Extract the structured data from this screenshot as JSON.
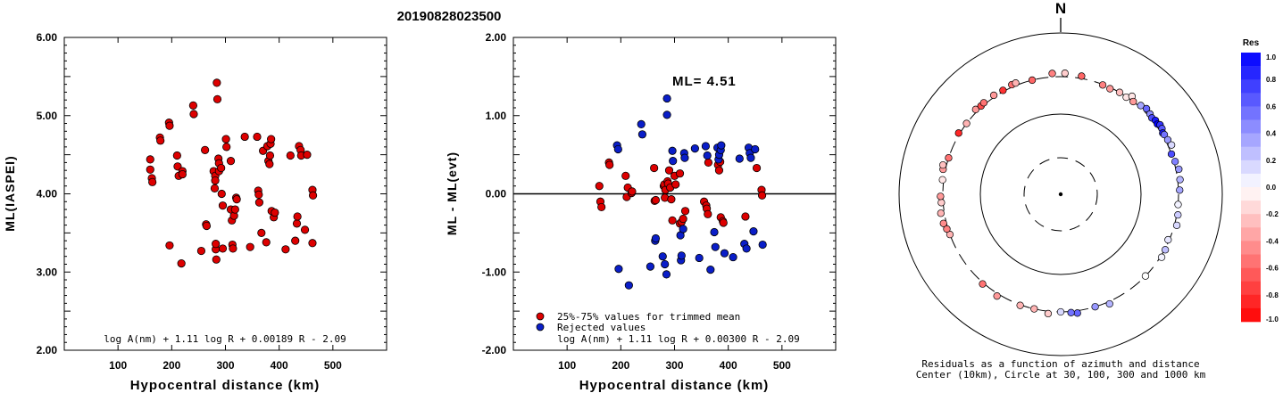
{
  "title": "20190828023500",
  "colors": {
    "pass": "#dd0000",
    "reject": "#0a1ec8",
    "edge": "#000000"
  },
  "chart_data": [
    {
      "type": "scatter",
      "xlabel": "Hypocentral distance (km)",
      "ylabel": "ML(IASPEI)",
      "xlim": [
        0,
        600
      ],
      "ylim": [
        2.0,
        6.0
      ],
      "xticks": [
        "100",
        "200",
        "300",
        "400",
        "500"
      ],
      "yticks": [
        "2.00",
        "3.00",
        "4.00",
        "5.00",
        "6.00"
      ],
      "formula": "log A(nm) + 1.11 log R + 0.00189 R - 2.09",
      "points": [
        [
          160,
          4.44
        ],
        [
          160,
          4.31
        ],
        [
          163,
          4.2
        ],
        [
          164,
          4.15
        ],
        [
          178,
          4.72
        ],
        [
          179,
          4.68
        ],
        [
          195,
          4.91
        ],
        [
          196,
          4.87
        ],
        [
          196,
          3.34
        ],
        [
          210,
          4.49
        ],
        [
          211,
          4.35
        ],
        [
          213,
          4.23
        ],
        [
          218,
          3.11
        ],
        [
          220,
          4.29
        ],
        [
          220,
          4.25
        ],
        [
          240,
          5.13
        ],
        [
          241,
          5.02
        ],
        [
          255,
          3.27
        ],
        [
          262,
          4.56
        ],
        [
          264,
          3.61
        ],
        [
          265,
          3.59
        ],
        [
          278,
          4.29
        ],
        [
          280,
          4.07
        ],
        [
          281,
          4.23
        ],
        [
          281,
          4.17
        ],
        [
          282,
          3.29
        ],
        [
          282,
          3.36
        ],
        [
          283,
          3.16
        ],
        [
          284,
          5.42
        ],
        [
          285,
          5.21
        ],
        [
          287,
          4.45
        ],
        [
          288,
          4.39
        ],
        [
          288,
          4.29
        ],
        [
          292,
          4.33
        ],
        [
          293,
          4.0
        ],
        [
          295,
          3.85
        ],
        [
          295,
          3.3
        ],
        [
          301,
          4.7
        ],
        [
          302,
          4.6
        ],
        [
          310,
          4.42
        ],
        [
          310,
          3.8
        ],
        [
          312,
          3.66
        ],
        [
          313,
          3.35
        ],
        [
          314,
          3.3
        ],
        [
          316,
          3.72
        ],
        [
          318,
          3.8
        ],
        [
          320,
          3.95
        ],
        [
          321,
          3.93
        ],
        [
          336,
          4.73
        ],
        [
          346,
          3.32
        ],
        [
          359,
          4.73
        ],
        [
          361,
          4.04
        ],
        [
          362,
          3.99
        ],
        [
          363,
          3.89
        ],
        [
          367,
          3.5
        ],
        [
          370,
          4.55
        ],
        [
          376,
          3.38
        ],
        [
          378,
          4.61
        ],
        [
          380,
          4.42
        ],
        [
          382,
          4.38
        ],
        [
          383,
          4.49
        ],
        [
          384,
          4.64
        ],
        [
          385,
          4.7
        ],
        [
          386,
          3.78
        ],
        [
          390,
          3.7
        ],
        [
          392,
          3.76
        ],
        [
          412,
          3.29
        ],
        [
          421,
          4.49
        ],
        [
          430,
          3.4
        ],
        [
          433,
          3.62
        ],
        [
          434,
          3.71
        ],
        [
          437,
          4.61
        ],
        [
          440,
          4.56
        ],
        [
          441,
          4.49
        ],
        [
          448,
          3.54
        ],
        [
          452,
          4.5
        ],
        [
          462,
          3.37
        ],
        [
          462,
          4.05
        ],
        [
          463,
          3.98
        ]
      ]
    },
    {
      "type": "scatter",
      "xlabel": "Hypocentral distance (km)",
      "ylabel": "ML - ML(evt)",
      "xlim": [
        0,
        600
      ],
      "ylim": [
        -2.0,
        2.0
      ],
      "xticks": [
        "100",
        "200",
        "300",
        "400",
        "500"
      ],
      "yticks": [
        "-2.00",
        "-1.00",
        "0.00",
        "1.00",
        "2.00"
      ],
      "annotation": "ML= 4.51",
      "legend": {
        "placement": "bottom-left",
        "items": [
          {
            "label": "25%-75% values for trimmed mean",
            "color": "#dd0000"
          },
          {
            "label": "Rejected values",
            "color": "#0a1ec8"
          }
        ]
      },
      "formula": "log A(nm) + 1.11 log R + 0.00300 R - 2.09",
      "series": [
        {
          "name": "25%-75% values for trimmed mean",
          "points": [
            [
              160,
              0.1
            ],
            [
              162,
              -0.1
            ],
            [
              164,
              -0.17
            ],
            [
              178,
              0.4
            ],
            [
              179,
              0.37
            ],
            [
              209,
              0.23
            ],
            [
              211,
              -0.04
            ],
            [
              213,
              0.08
            ],
            [
              220,
              0.01
            ],
            [
              221,
              0.03
            ],
            [
              262,
              0.33
            ],
            [
              263,
              -0.09
            ],
            [
              265,
              -0.08
            ],
            [
              280,
              0.1
            ],
            [
              281,
              0.12
            ],
            [
              282,
              -0.05
            ],
            [
              283,
              0.05
            ],
            [
              287,
              0.16
            ],
            [
              288,
              0.13
            ],
            [
              290,
              0.3
            ],
            [
              292,
              0.08
            ],
            [
              294,
              -0.07
            ],
            [
              296,
              -0.34
            ],
            [
              300,
              0.23
            ],
            [
              302,
              0.12
            ],
            [
              310,
              0.26
            ],
            [
              310,
              -0.38
            ],
            [
              313,
              -0.36
            ],
            [
              316,
              -0.32
            ],
            [
              320,
              -0.22
            ],
            [
              355,
              -0.1
            ],
            [
              359,
              -0.15
            ],
            [
              360,
              -0.19
            ],
            [
              362,
              -0.26
            ],
            [
              363,
              0.4
            ],
            [
              381,
              0.37
            ],
            [
              383,
              0.3
            ],
            [
              385,
              0.41
            ],
            [
              386,
              -0.3
            ],
            [
              390,
              -0.35
            ],
            [
              391,
              -0.37
            ],
            [
              432,
              -0.29
            ],
            [
              453,
              0.33
            ],
            [
              462,
              0.05
            ],
            [
              463,
              -0.02
            ]
          ]
        },
        {
          "name": "Rejected values",
          "points": [
            [
              193,
              0.62
            ],
            [
              195,
              0.57
            ],
            [
              196,
              -0.96
            ],
            [
              215,
              -1.17
            ],
            [
              238,
              0.89
            ],
            [
              240,
              0.76
            ],
            [
              255,
              -0.93
            ],
            [
              264,
              -0.6
            ],
            [
              265,
              -0.57
            ],
            [
              278,
              -0.8
            ],
            [
              282,
              -0.9
            ],
            [
              285,
              -1.03
            ],
            [
              286,
              1.22
            ],
            [
              286,
              1.01
            ],
            [
              296,
              0.55
            ],
            [
              297,
              0.42
            ],
            [
              311,
              -0.53
            ],
            [
              312,
              -0.85
            ],
            [
              313,
              -0.79
            ],
            [
              316,
              -0.45
            ],
            [
              318,
              0.52
            ],
            [
              319,
              0.46
            ],
            [
              338,
              0.58
            ],
            [
              346,
              -0.82
            ],
            [
              358,
              0.61
            ],
            [
              361,
              0.49
            ],
            [
              367,
              -0.97
            ],
            [
              374,
              -0.49
            ],
            [
              376,
              -0.68
            ],
            [
              380,
              0.59
            ],
            [
              382,
              0.44
            ],
            [
              383,
              0.5
            ],
            [
              386,
              0.56
            ],
            [
              387,
              0.62
            ],
            [
              393,
              -0.76
            ],
            [
              409,
              -0.81
            ],
            [
              421,
              0.45
            ],
            [
              430,
              -0.64
            ],
            [
              434,
              -0.7
            ],
            [
              438,
              0.59
            ],
            [
              440,
              0.52
            ],
            [
              442,
              0.46
            ],
            [
              447,
              -0.48
            ],
            [
              450,
              0.57
            ],
            [
              464,
              -0.65
            ]
          ]
        }
      ]
    },
    {
      "type": "polar",
      "north_label": "N",
      "caption": [
        "Residuals as a function of azimuth and distance",
        "Center (10km), Circle at 30, 100, 300 and 1000 km"
      ],
      "colorbar": {
        "title": "Res",
        "range": [
          -1.0,
          1.0
        ],
        "ticks": [
          "1.0",
          "0.8",
          "0.6",
          "0.4",
          "0.2",
          "0.0",
          "-0.2",
          "-0.4",
          "-0.6",
          "-0.8",
          "-1.0"
        ]
      },
      "points": [
        [
          2,
          330,
          -0.2
        ],
        [
          10,
          320,
          -0.6
        ],
        [
          21,
          295,
          -0.5
        ],
        [
          25,
          290,
          -0.4
        ],
        [
          30,
          300,
          -0.25
        ],
        [
          34,
          295,
          -0.1
        ],
        [
          36,
          330,
          -0.1
        ],
        [
          38,
          300,
          -0.4
        ],
        [
          42,
          315,
          0.35
        ],
        [
          45,
          330,
          0.6
        ],
        [
          48,
          320,
          0.45
        ],
        [
          50,
          310,
          0.7
        ],
        [
          52,
          320,
          0.9
        ],
        [
          54,
          315,
          1.0
        ],
        [
          55,
          330,
          0.8
        ],
        [
          57,
          325,
          0.65
        ],
        [
          59,
          310,
          0.9
        ],
        [
          60,
          315,
          0.55
        ],
        [
          63,
          320,
          0.4
        ],
        [
          66,
          330,
          0.15
        ],
        [
          70,
          300,
          0.7
        ],
        [
          74,
          310,
          0.5
        ],
        [
          78,
          325,
          0.4
        ],
        [
          83,
          320,
          0.3
        ],
        [
          88,
          310,
          0.35
        ],
        [
          95,
          300,
          0.05
        ],
        [
          100,
          310,
          0.2
        ],
        [
          105,
          320,
          0.15
        ],
        [
          113,
          290,
          0.1
        ],
        [
          118,
          305,
          0.25
        ],
        [
          122,
          310,
          0.05
        ],
        [
          134,
          300,
          0.0
        ],
        [
          156,
          320,
          0.3
        ],
        [
          163,
          300,
          0.4
        ],
        [
          172,
          320,
          0.6
        ],
        [
          175,
          310,
          0.55
        ],
        [
          180,
          300,
          0.15
        ],
        [
          186,
          320,
          -0.2
        ],
        [
          193,
          300,
          -0.3
        ],
        [
          200,
          305,
          -0.3
        ],
        [
          212,
          320,
          -0.4
        ],
        [
          221,
          310,
          -0.55
        ],
        [
          250,
          300,
          -0.3
        ],
        [
          253,
          310,
          -0.5
        ],
        [
          256,
          325,
          -0.45
        ],
        [
          261,
          330,
          -0.3
        ],
        [
          266,
          315,
          -0.2
        ],
        [
          269,
          320,
          -0.4
        ],
        [
          277,
          310,
          -0.1
        ],
        [
          282,
          320,
          -0.4
        ],
        [
          284,
          330,
          -0.25
        ],
        [
          288,
          300,
          -0.55
        ],
        [
          301,
          310,
          -0.85
        ],
        [
          307,
          300,
          -0.3
        ],
        [
          315,
          320,
          -0.4
        ],
        [
          318,
          310,
          -0.7
        ],
        [
          320,
          315,
          -0.55
        ],
        [
          326,
          315,
          -0.4
        ],
        [
          331,
          310,
          -0.8
        ],
        [
          336,
          320,
          -0.55
        ],
        [
          338,
          320,
          -0.3
        ],
        [
          346,
          300,
          -0.6
        ],
        [
          356,
          330,
          -0.5
        ]
      ]
    }
  ]
}
